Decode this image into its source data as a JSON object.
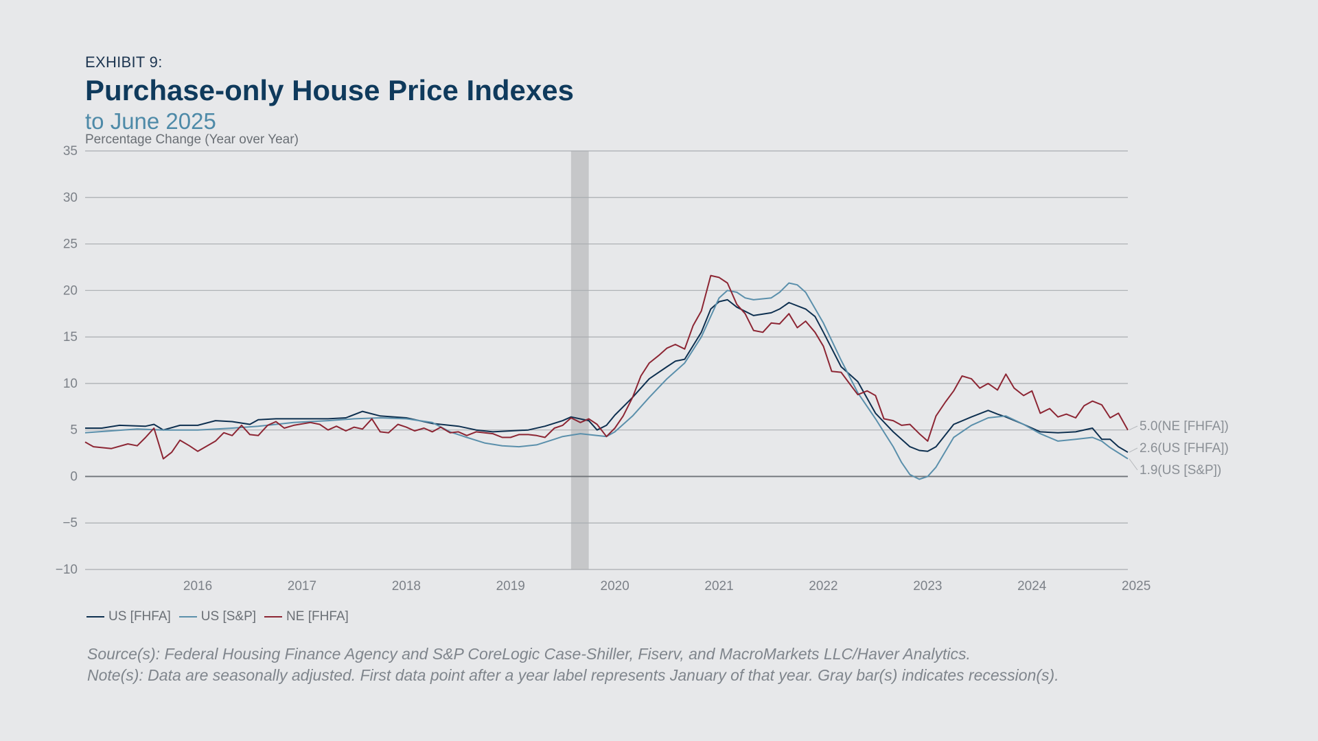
{
  "header": {
    "exhibit": "EXHIBIT 9:",
    "title": "Purchase-only House Price Indexes",
    "subtitle": "to June 2025"
  },
  "chart_data": {
    "type": "line",
    "ylabel": "Percentage Change (Year over Year)",
    "ylim": [
      -10,
      35
    ],
    "yticks": [
      35,
      30,
      25,
      20,
      15,
      10,
      5,
      0,
      -5,
      -10
    ],
    "xlim": [
      2015.42,
      2025.42
    ],
    "xticks": [
      "2016",
      "2017",
      "2018",
      "2019",
      "2020",
      "2021",
      "2022",
      "2023",
      "2024",
      "2025"
    ],
    "grid": true,
    "legend": "bottom-left",
    "recession": [
      2020.08,
      2020.25
    ],
    "end_labels": [
      {
        "text": "5.0(NE [FHFA])",
        "value": 5.0
      },
      {
        "text": "2.6(US [FHFA])",
        "value": 2.6
      },
      {
        "text": "1.9(US [S&P])",
        "value": 1.9
      }
    ],
    "series": [
      {
        "name": "US [FHFA]",
        "color": "#0d2f4f",
        "points": [
          [
            2015.42,
            5.2
          ],
          [
            2015.58,
            5.2
          ],
          [
            2015.75,
            5.5
          ],
          [
            2016.0,
            5.4
          ],
          [
            2016.08,
            5.6
          ],
          [
            2016.17,
            5.0
          ],
          [
            2016.33,
            5.5
          ],
          [
            2016.5,
            5.5
          ],
          [
            2016.67,
            6.0
          ],
          [
            2016.83,
            5.9
          ],
          [
            2017.0,
            5.6
          ],
          [
            2017.08,
            6.1
          ],
          [
            2017.25,
            6.2
          ],
          [
            2017.5,
            6.2
          ],
          [
            2017.75,
            6.2
          ],
          [
            2017.92,
            6.3
          ],
          [
            2018.08,
            7.0
          ],
          [
            2018.25,
            6.5
          ],
          [
            2018.5,
            6.3
          ],
          [
            2018.75,
            5.7
          ],
          [
            2019.0,
            5.4
          ],
          [
            2019.17,
            5.0
          ],
          [
            2019.33,
            4.8
          ],
          [
            2019.5,
            4.9
          ],
          [
            2019.67,
            5.0
          ],
          [
            2019.83,
            5.4
          ],
          [
            2020.0,
            6.0
          ],
          [
            2020.08,
            6.4
          ],
          [
            2020.25,
            6.0
          ],
          [
            2020.33,
            5.0
          ],
          [
            2020.42,
            5.5
          ],
          [
            2020.5,
            6.6
          ],
          [
            2020.67,
            8.5
          ],
          [
            2020.83,
            10.5
          ],
          [
            2021.0,
            11.8
          ],
          [
            2021.08,
            12.4
          ],
          [
            2021.17,
            12.6
          ],
          [
            2021.33,
            15.5
          ],
          [
            2021.42,
            18.0
          ],
          [
            2021.5,
            18.8
          ],
          [
            2021.58,
            19.0
          ],
          [
            2021.67,
            18.2
          ],
          [
            2021.83,
            17.3
          ],
          [
            2022.0,
            17.6
          ],
          [
            2022.08,
            18.0
          ],
          [
            2022.17,
            18.7
          ],
          [
            2022.33,
            18.0
          ],
          [
            2022.42,
            17.2
          ],
          [
            2022.5,
            15.5
          ],
          [
            2022.67,
            11.8
          ],
          [
            2022.83,
            10.2
          ],
          [
            2023.0,
            6.8
          ],
          [
            2023.17,
            4.8
          ],
          [
            2023.33,
            3.2
          ],
          [
            2023.42,
            2.8
          ],
          [
            2023.5,
            2.7
          ],
          [
            2023.58,
            3.2
          ],
          [
            2023.75,
            5.6
          ],
          [
            2023.92,
            6.4
          ],
          [
            2024.08,
            7.1
          ],
          [
            2024.17,
            6.7
          ],
          [
            2024.25,
            6.4
          ],
          [
            2024.42,
            5.6
          ],
          [
            2024.58,
            4.8
          ],
          [
            2024.75,
            4.7
          ],
          [
            2024.92,
            4.8
          ],
          [
            2025.08,
            5.2
          ],
          [
            2025.17,
            4.0
          ],
          [
            2025.25,
            4.0
          ],
          [
            2025.33,
            3.2
          ],
          [
            2025.42,
            2.6
          ]
        ]
      },
      {
        "name": "US [S&P]",
        "color": "#5a8fab",
        "points": [
          [
            2015.42,
            4.7
          ],
          [
            2015.67,
            4.9
          ],
          [
            2015.92,
            5.1
          ],
          [
            2016.17,
            5.0
          ],
          [
            2016.5,
            5.0
          ],
          [
            2016.83,
            5.2
          ],
          [
            2017.08,
            5.4
          ],
          [
            2017.42,
            5.8
          ],
          [
            2017.75,
            6.0
          ],
          [
            2018.0,
            6.2
          ],
          [
            2018.25,
            6.3
          ],
          [
            2018.5,
            6.2
          ],
          [
            2018.75,
            5.8
          ],
          [
            2018.92,
            4.8
          ],
          [
            2019.08,
            4.2
          ],
          [
            2019.25,
            3.6
          ],
          [
            2019.42,
            3.3
          ],
          [
            2019.58,
            3.2
          ],
          [
            2019.75,
            3.4
          ],
          [
            2019.92,
            4.0
          ],
          [
            2020.0,
            4.3
          ],
          [
            2020.17,
            4.6
          ],
          [
            2020.33,
            4.4
          ],
          [
            2020.42,
            4.3
          ],
          [
            2020.5,
            4.8
          ],
          [
            2020.67,
            6.5
          ],
          [
            2020.83,
            8.5
          ],
          [
            2021.0,
            10.5
          ],
          [
            2021.17,
            12.2
          ],
          [
            2021.33,
            15.0
          ],
          [
            2021.5,
            19.2
          ],
          [
            2021.58,
            20.0
          ],
          [
            2021.67,
            19.8
          ],
          [
            2021.75,
            19.2
          ],
          [
            2021.83,
            19.0
          ],
          [
            2022.0,
            19.2
          ],
          [
            2022.08,
            19.8
          ],
          [
            2022.17,
            20.8
          ],
          [
            2022.25,
            20.6
          ],
          [
            2022.33,
            19.8
          ],
          [
            2022.5,
            16.5
          ],
          [
            2022.67,
            12.5
          ],
          [
            2022.83,
            9.0
          ],
          [
            2023.0,
            6.2
          ],
          [
            2023.17,
            3.2
          ],
          [
            2023.25,
            1.5
          ],
          [
            2023.33,
            0.2
          ],
          [
            2023.42,
            -0.3
          ],
          [
            2023.5,
            0.0
          ],
          [
            2023.58,
            1.0
          ],
          [
            2023.75,
            4.2
          ],
          [
            2023.92,
            5.5
          ],
          [
            2024.08,
            6.3
          ],
          [
            2024.25,
            6.5
          ],
          [
            2024.42,
            5.6
          ],
          [
            2024.58,
            4.6
          ],
          [
            2024.75,
            3.8
          ],
          [
            2024.92,
            4.0
          ],
          [
            2025.08,
            4.2
          ],
          [
            2025.17,
            3.8
          ],
          [
            2025.25,
            3.1
          ],
          [
            2025.42,
            1.9
          ]
        ]
      },
      {
        "name": "NE [FHFA]",
        "color": "#8c2533",
        "points": [
          [
            2015.42,
            3.7
          ],
          [
            2015.5,
            3.2
          ],
          [
            2015.67,
            3.0
          ],
          [
            2015.83,
            3.5
          ],
          [
            2015.92,
            3.3
          ],
          [
            2016.0,
            4.2
          ],
          [
            2016.08,
            5.2
          ],
          [
            2016.17,
            1.9
          ],
          [
            2016.25,
            2.6
          ],
          [
            2016.33,
            3.9
          ],
          [
            2016.42,
            3.3
          ],
          [
            2016.5,
            2.7
          ],
          [
            2016.67,
            3.8
          ],
          [
            2016.75,
            4.7
          ],
          [
            2016.83,
            4.4
          ],
          [
            2016.92,
            5.5
          ],
          [
            2017.0,
            4.5
          ],
          [
            2017.08,
            4.4
          ],
          [
            2017.17,
            5.5
          ],
          [
            2017.25,
            5.9
          ],
          [
            2017.33,
            5.2
          ],
          [
            2017.42,
            5.5
          ],
          [
            2017.58,
            5.8
          ],
          [
            2017.67,
            5.6
          ],
          [
            2017.75,
            5.0
          ],
          [
            2017.83,
            5.4
          ],
          [
            2017.92,
            4.9
          ],
          [
            2018.0,
            5.3
          ],
          [
            2018.08,
            5.1
          ],
          [
            2018.17,
            6.2
          ],
          [
            2018.25,
            4.8
          ],
          [
            2018.33,
            4.7
          ],
          [
            2018.42,
            5.6
          ],
          [
            2018.5,
            5.3
          ],
          [
            2018.58,
            4.9
          ],
          [
            2018.67,
            5.2
          ],
          [
            2018.75,
            4.8
          ],
          [
            2018.83,
            5.3
          ],
          [
            2018.92,
            4.7
          ],
          [
            2019.0,
            4.8
          ],
          [
            2019.08,
            4.4
          ],
          [
            2019.17,
            4.8
          ],
          [
            2019.25,
            4.7
          ],
          [
            2019.33,
            4.6
          ],
          [
            2019.42,
            4.2
          ],
          [
            2019.5,
            4.2
          ],
          [
            2019.58,
            4.5
          ],
          [
            2019.67,
            4.5
          ],
          [
            2019.75,
            4.4
          ],
          [
            2019.83,
            4.2
          ],
          [
            2019.92,
            5.2
          ],
          [
            2020.0,
            5.5
          ],
          [
            2020.08,
            6.3
          ],
          [
            2020.17,
            5.8
          ],
          [
            2020.25,
            6.2
          ],
          [
            2020.33,
            5.6
          ],
          [
            2020.42,
            4.3
          ],
          [
            2020.5,
            5.2
          ],
          [
            2020.58,
            6.5
          ],
          [
            2020.67,
            8.5
          ],
          [
            2020.75,
            10.8
          ],
          [
            2020.83,
            12.2
          ],
          [
            2020.92,
            13.0
          ],
          [
            2021.0,
            13.8
          ],
          [
            2021.08,
            14.2
          ],
          [
            2021.17,
            13.7
          ],
          [
            2021.25,
            16.2
          ],
          [
            2021.33,
            17.8
          ],
          [
            2021.42,
            21.6
          ],
          [
            2021.5,
            21.4
          ],
          [
            2021.58,
            20.8
          ],
          [
            2021.67,
            18.5
          ],
          [
            2021.75,
            17.5
          ],
          [
            2021.83,
            15.7
          ],
          [
            2021.92,
            15.5
          ],
          [
            2022.0,
            16.5
          ],
          [
            2022.08,
            16.4
          ],
          [
            2022.17,
            17.5
          ],
          [
            2022.25,
            16.0
          ],
          [
            2022.33,
            16.7
          ],
          [
            2022.42,
            15.5
          ],
          [
            2022.5,
            14.0
          ],
          [
            2022.58,
            11.3
          ],
          [
            2022.67,
            11.2
          ],
          [
            2022.75,
            10.0
          ],
          [
            2022.83,
            8.8
          ],
          [
            2022.92,
            9.2
          ],
          [
            2023.0,
            8.7
          ],
          [
            2023.08,
            6.2
          ],
          [
            2023.17,
            6.0
          ],
          [
            2023.25,
            5.5
          ],
          [
            2023.33,
            5.6
          ],
          [
            2023.42,
            4.6
          ],
          [
            2023.5,
            3.8
          ],
          [
            2023.58,
            6.5
          ],
          [
            2023.67,
            8.0
          ],
          [
            2023.75,
            9.2
          ],
          [
            2023.83,
            10.8
          ],
          [
            2023.92,
            10.5
          ],
          [
            2024.0,
            9.5
          ],
          [
            2024.08,
            10.0
          ],
          [
            2024.17,
            9.3
          ],
          [
            2024.25,
            11.0
          ],
          [
            2024.33,
            9.5
          ],
          [
            2024.42,
            8.7
          ],
          [
            2024.5,
            9.2
          ],
          [
            2024.58,
            6.8
          ],
          [
            2024.67,
            7.3
          ],
          [
            2024.75,
            6.4
          ],
          [
            2024.83,
            6.7
          ],
          [
            2024.92,
            6.3
          ],
          [
            2025.0,
            7.6
          ],
          [
            2025.08,
            8.1
          ],
          [
            2025.17,
            7.7
          ],
          [
            2025.25,
            6.3
          ],
          [
            2025.33,
            6.8
          ],
          [
            2025.42,
            5.0
          ]
        ]
      }
    ]
  },
  "footer": {
    "source": "Source(s): Federal Housing Finance Agency and S&P CoreLogic Case-Shiller, Fiserv, and MacroMarkets LLC/Haver Analytics.",
    "note": "Note(s): Data are seasonally adjusted. First data point after a year label represents January of that year. Gray bar(s) indicates recession(s)."
  }
}
